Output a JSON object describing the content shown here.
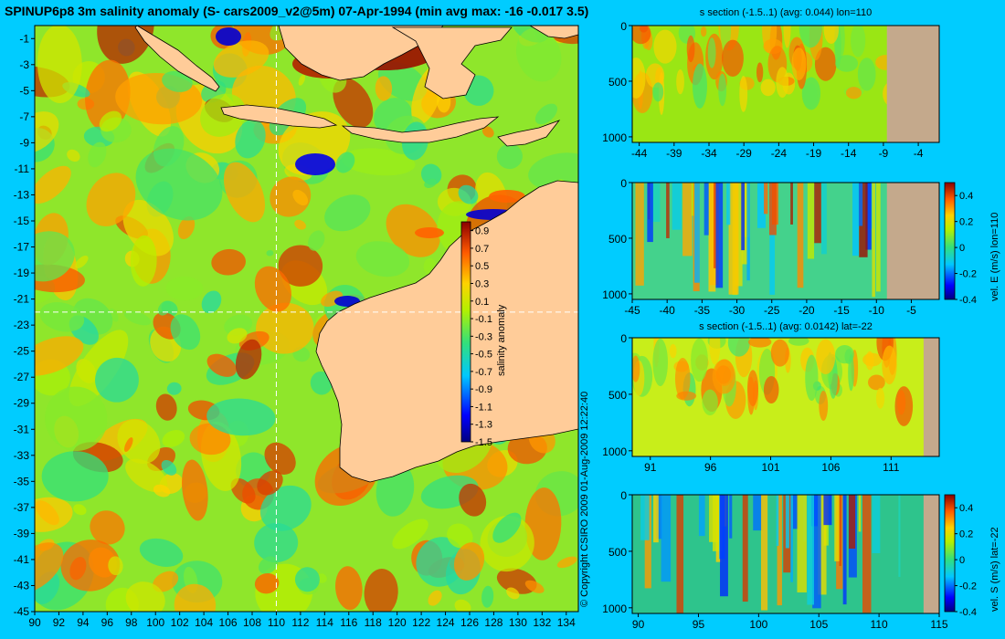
{
  "title": "SPINUP6p8 3m salinity anomaly (S- cars2009_v2@5m) 07-Apr-1994 (min avg max: -16 -0.017 3.5)",
  "copyright": "© Copyright CSIRO 2009  01-Aug-2009 12:22:40",
  "colors": {
    "background": "#00ccff",
    "land": "#ffcc99",
    "section_land": "#c4a98c",
    "coast": "#000000",
    "crosshair": "#ffffff"
  },
  "chart_data": [
    {
      "type": "heatmap",
      "id": "map",
      "title": "SPINUP6p8 3m salinity anomaly (S- cars2009_v2@5m) 07-Apr-1994 (min avg max: -16 -0.017 3.5)",
      "xlim": [
        90,
        135
      ],
      "ylim": [
        -45,
        0
      ],
      "xticks": [
        90,
        92,
        94,
        96,
        98,
        100,
        102,
        104,
        106,
        108,
        110,
        112,
        114,
        116,
        118,
        120,
        122,
        124,
        126,
        128,
        130,
        132,
        134
      ],
      "yticks": [
        -1,
        -3,
        -5,
        -7,
        -9,
        -11,
        -13,
        -15,
        -17,
        -19,
        -21,
        -23,
        -25,
        -27,
        -29,
        -31,
        -33,
        -35,
        -37,
        -39,
        -41,
        -43,
        -45
      ],
      "crosshair": {
        "lon": 110,
        "lat": -22
      },
      "colorbar": {
        "label": "salinity anomaly",
        "range": [
          -1.5,
          1.0
        ],
        "ticks": [
          0.9,
          0.7,
          0.5,
          0.3,
          0.1,
          -0.1,
          -0.3,
          -0.5,
          -0.7,
          -0.9,
          -1.1,
          -1.3,
          -1.5
        ]
      }
    },
    {
      "type": "heatmap",
      "id": "s-section-lon110",
      "title": "s section (-1.5..1) (avg: 0.044) lon=110",
      "xlim": [
        -45,
        -1
      ],
      "ylim": [
        1050,
        0
      ],
      "xticks": [
        -44,
        -39,
        -34,
        -29,
        -24,
        -19,
        -14,
        -9,
        -4
      ],
      "yticks": [
        0,
        500,
        1000
      ],
      "land_from_x": -8.5
    },
    {
      "type": "heatmap",
      "id": "vel-e-lon110",
      "title": "",
      "xlim": [
        -45,
        -1
      ],
      "ylim": [
        1050,
        0
      ],
      "xticks": [
        -45,
        -40,
        -35,
        -30,
        -25,
        -20,
        -15,
        -10,
        -5
      ],
      "yticks": [
        0,
        500,
        1000
      ],
      "land_from_x": -8.5,
      "colorbar": {
        "label": "vel. E (m/s) lon=110",
        "range": [
          -0.4,
          0.5
        ],
        "ticks": [
          0.4,
          0.2,
          0,
          -0.2,
          -0.4
        ]
      }
    },
    {
      "type": "heatmap",
      "id": "s-section-lat-22",
      "title": "s section (-1.5..1) (avg: 0.0142) lat=-22",
      "xlim": [
        89.5,
        115
      ],
      "ylim": [
        1050,
        0
      ],
      "xticks": [
        91,
        96,
        101,
        106,
        111
      ],
      "yticks": [
        0,
        500,
        1000
      ],
      "land_from_x": 113.7
    },
    {
      "type": "heatmap",
      "id": "vel-s-lat-22",
      "title": "",
      "xlim": [
        89.5,
        115
      ],
      "ylim": [
        1050,
        0
      ],
      "xticks": [
        90,
        95,
        100,
        105,
        110,
        115
      ],
      "yticks": [
        0,
        500,
        1000
      ],
      "land_from_x": 113.7,
      "colorbar": {
        "label": "vel. S (m/s) lat=-22",
        "range": [
          -0.4,
          0.5
        ],
        "ticks": [
          0.4,
          0.2,
          0,
          -0.2,
          -0.4
        ]
      }
    }
  ]
}
